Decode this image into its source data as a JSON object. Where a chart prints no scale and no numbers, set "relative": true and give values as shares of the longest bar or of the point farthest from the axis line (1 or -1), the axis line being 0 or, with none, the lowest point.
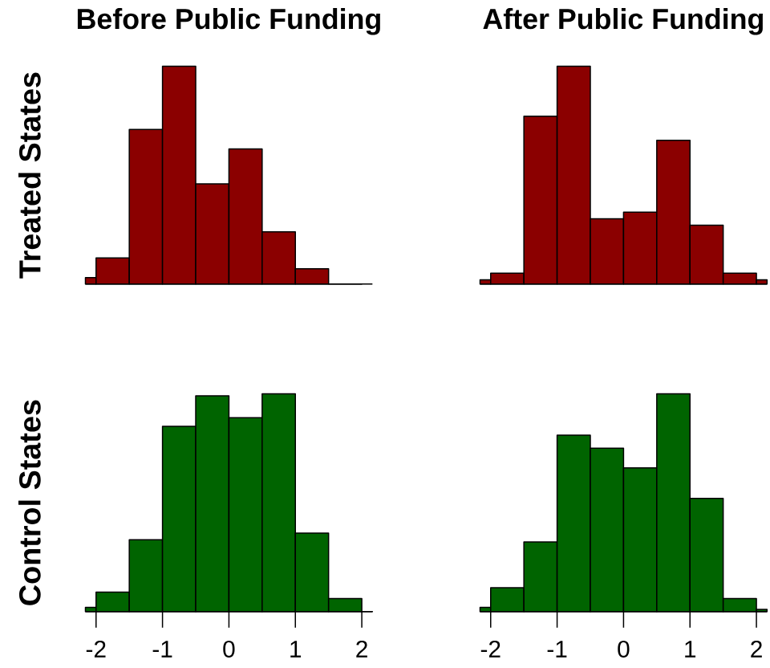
{
  "chart_data": [
    {
      "type": "bar",
      "title": "Before Public Funding",
      "ylabel": "Treated States",
      "relative": true,
      "color": "#8b0000",
      "x": [
        -2.08,
        -1.75,
        -1.25,
        -0.75,
        -0.25,
        0.25,
        0.75,
        1.25,
        1.75
      ],
      "values": [
        0.03,
        0.12,
        0.71,
        1,
        0.46,
        0.62,
        0.24,
        0.07,
        0
      ],
      "xlim": [
        -2.16,
        2.16
      ],
      "tick_labels": false
    },
    {
      "type": "bar",
      "title": "After Public Funding",
      "relative": true,
      "color": "#8b0000",
      "x": [
        -2.08,
        -1.75,
        -1.25,
        -0.75,
        -0.25,
        0.25,
        0.75,
        1.25,
        1.75,
        2.08
      ],
      "values": [
        0.02,
        0.05,
        0.77,
        1,
        0.3,
        0.33,
        0.66,
        0.27,
        0.05,
        0.02
      ],
      "xlim": [
        -2.16,
        2.16
      ],
      "tick_labels": false
    },
    {
      "type": "bar",
      "ylabel": "Control States",
      "relative": true,
      "color": "#006400",
      "x": [
        -2.08,
        -1.75,
        -1.25,
        -0.75,
        -0.25,
        0.25,
        0.75,
        1.25,
        1.75,
        2.08
      ],
      "values": [
        0.02,
        0.09,
        0.33,
        0.85,
        0.99,
        0.89,
        1,
        0.36,
        0.06,
        0
      ],
      "xlim": [
        -2.16,
        2.16
      ],
      "xticks": [
        -2,
        -1,
        0,
        1,
        2
      ],
      "tick_labels": "x"
    },
    {
      "type": "bar",
      "relative": true,
      "color": "#006400",
      "x": [
        -2.08,
        -1.75,
        -1.25,
        -0.75,
        -0.25,
        0.25,
        0.75,
        1.25,
        1.75,
        2.08
      ],
      "values": [
        0.02,
        0.11,
        0.32,
        0.81,
        0.75,
        0.66,
        1,
        0.52,
        0.06,
        0.01
      ],
      "xlim": [
        -2.16,
        2.16
      ],
      "xticks": [
        -2,
        -1,
        0,
        1,
        2
      ],
      "tick_labels": "x"
    }
  ]
}
